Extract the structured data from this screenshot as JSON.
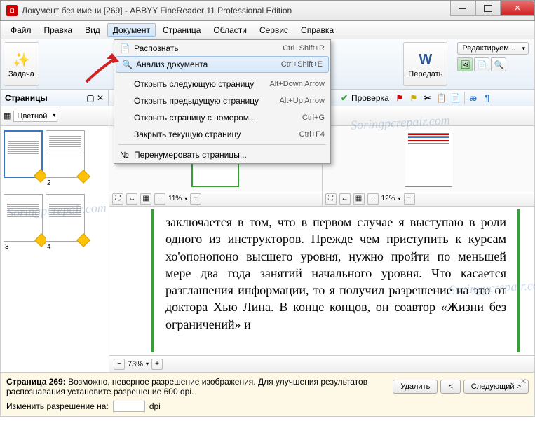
{
  "window": {
    "title": "Документ без имени [269] - ABBYY FineReader 11 Professional Edition",
    "app_icon_letter": "◘"
  },
  "menu": {
    "items": [
      "Файл",
      "Правка",
      "Вид",
      "Документ",
      "Страница",
      "Области",
      "Сервис",
      "Справка"
    ],
    "active_index": 3
  },
  "dropdown": {
    "items": [
      {
        "icon": "📄",
        "label": "Распознать",
        "shortcut": "Ctrl+Shift+R"
      },
      {
        "icon": "🔍",
        "label": "Анализ документа",
        "shortcut": "Ctrl+Shift+E",
        "highlight": true
      },
      {
        "sep": true
      },
      {
        "icon": "",
        "label": "Открыть следующую страницу",
        "shortcut": "Alt+Down Arrow"
      },
      {
        "icon": "",
        "label": "Открыть предыдущую страницу",
        "shortcut": "Alt+Up Arrow"
      },
      {
        "icon": "",
        "label": "Открыть страницу с номером...",
        "shortcut": "Ctrl+G"
      },
      {
        "icon": "",
        "label": "Закрыть текущую страницу",
        "shortcut": "Ctrl+F4"
      },
      {
        "sep": true
      },
      {
        "icon": "№",
        "label": "Перенумеровать страницы...",
        "shortcut": ""
      }
    ]
  },
  "toolbar": {
    "task_label": "Задача",
    "pass_label": "Передать",
    "edit_label": "Редактируем...",
    "check_label": "Проверка"
  },
  "sidebar": {
    "header": "Страницы",
    "mode": "Цветной",
    "thumbs": [
      {
        "num": "",
        "selected": true
      },
      {
        "num": "2"
      },
      {
        "num": "3"
      },
      {
        "num": "4"
      }
    ]
  },
  "previews": {
    "left_zoom": "11%",
    "right_zoom": "12%"
  },
  "textview": {
    "content": "заключается в том, что в первом случае я выступаю в роли одного из инструкторов. Прежде чем приступить к курсам хо'опонопоно высшего уровня, нужно пройти по меньшей мере два года занятий начального уровня. Что касается разглашения информации, то я получил разрешение на это от доктора Хью Лина. В конце концов, он соавтор «Жизни без ограничений» и"
  },
  "bottom_zoom": "73%",
  "status": {
    "page_label": "Страница 269:",
    "message": "Возможно, неверное разрешение изображения. Для улучшения результатов распознавания установите разрешение 600 dpi.",
    "change_label": "Изменить разрешение на:",
    "dpi_label": "dpi",
    "delete_btn": "Удалить",
    "next_btn": "Следующий >",
    "prev_btn": "<"
  },
  "colors": {
    "accent": "#3a78c4",
    "green": "#3a9d3a",
    "arrow": "#d02020"
  },
  "watermark": "Soringpcrepair.com"
}
